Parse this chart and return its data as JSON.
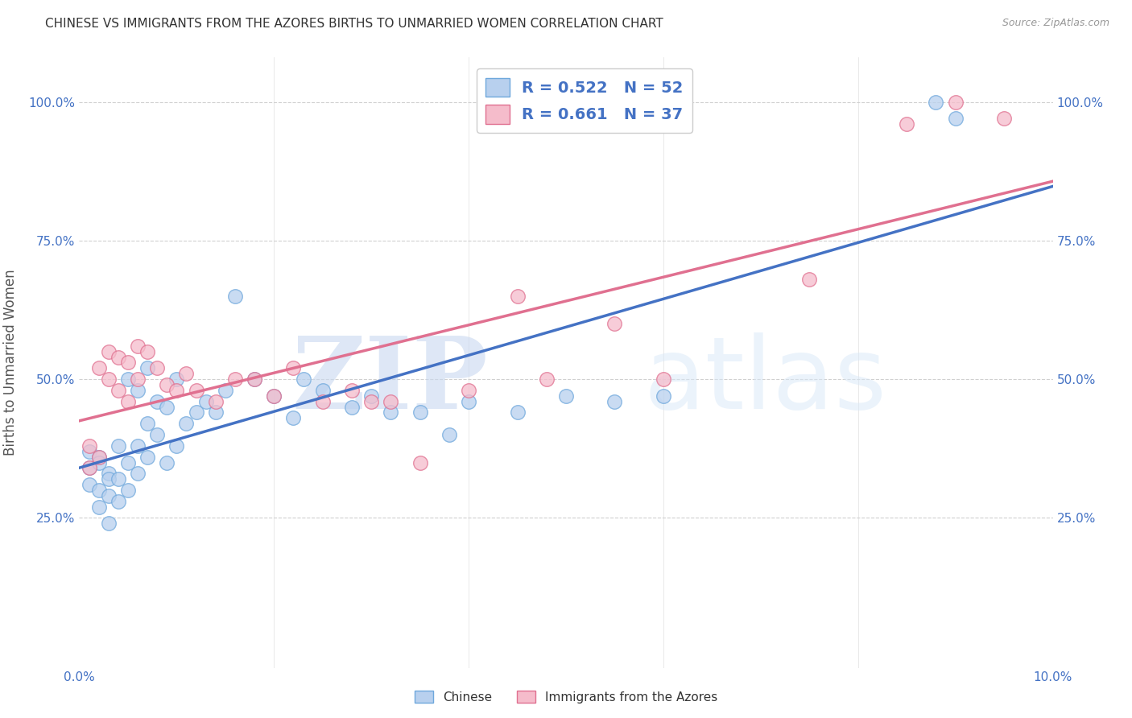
{
  "title": "CHINESE VS IMMIGRANTS FROM THE AZORES BIRTHS TO UNMARRIED WOMEN CORRELATION CHART",
  "source": "Source: ZipAtlas.com",
  "ylabel": "Births to Unmarried Women",
  "xlim": [
    0.0,
    0.1
  ],
  "ylim": [
    -0.02,
    1.08
  ],
  "watermark_zip": "ZIP",
  "watermark_atlas": "atlas",
  "chinese_color": "#b8d0ee",
  "azores_color": "#f5bccb",
  "chinese_edge_color": "#6fa8dc",
  "azores_edge_color": "#e07090",
  "trendline_chinese_color": "#4472c4",
  "trendline_azores_color": "#e07090",
  "legend_label_1": "R = 0.522   N = 52",
  "legend_label_2": "R = 0.661   N = 37",
  "bottom_legend_1": "Chinese",
  "bottom_legend_2": "Immigrants from the Azores",
  "chinese_scatter_x": [
    0.001,
    0.001,
    0.001,
    0.002,
    0.002,
    0.002,
    0.002,
    0.003,
    0.003,
    0.003,
    0.003,
    0.004,
    0.004,
    0.004,
    0.005,
    0.005,
    0.005,
    0.006,
    0.006,
    0.006,
    0.007,
    0.007,
    0.007,
    0.008,
    0.008,
    0.009,
    0.009,
    0.01,
    0.01,
    0.011,
    0.012,
    0.013,
    0.014,
    0.015,
    0.016,
    0.018,
    0.02,
    0.022,
    0.023,
    0.025,
    0.028,
    0.03,
    0.032,
    0.035,
    0.038,
    0.04,
    0.045,
    0.05,
    0.055,
    0.06,
    0.088,
    0.09
  ],
  "chinese_scatter_y": [
    0.37,
    0.34,
    0.31,
    0.36,
    0.35,
    0.3,
    0.27,
    0.33,
    0.32,
    0.29,
    0.24,
    0.38,
    0.32,
    0.28,
    0.5,
    0.35,
    0.3,
    0.48,
    0.38,
    0.33,
    0.52,
    0.42,
    0.36,
    0.46,
    0.4,
    0.45,
    0.35,
    0.5,
    0.38,
    0.42,
    0.44,
    0.46,
    0.44,
    0.48,
    0.65,
    0.5,
    0.47,
    0.43,
    0.5,
    0.48,
    0.45,
    0.47,
    0.44,
    0.44,
    0.4,
    0.46,
    0.44,
    0.47,
    0.46,
    0.47,
    1.0,
    0.97
  ],
  "azores_scatter_x": [
    0.001,
    0.001,
    0.002,
    0.002,
    0.003,
    0.003,
    0.004,
    0.004,
    0.005,
    0.005,
    0.006,
    0.006,
    0.007,
    0.008,
    0.009,
    0.01,
    0.011,
    0.012,
    0.014,
    0.016,
    0.018,
    0.02,
    0.022,
    0.025,
    0.028,
    0.03,
    0.032,
    0.035,
    0.04,
    0.045,
    0.048,
    0.055,
    0.06,
    0.075,
    0.085,
    0.09,
    0.095
  ],
  "azores_scatter_y": [
    0.38,
    0.34,
    0.52,
    0.36,
    0.55,
    0.5,
    0.54,
    0.48,
    0.53,
    0.46,
    0.56,
    0.5,
    0.55,
    0.52,
    0.49,
    0.48,
    0.51,
    0.48,
    0.46,
    0.5,
    0.5,
    0.47,
    0.52,
    0.46,
    0.48,
    0.46,
    0.46,
    0.35,
    0.48,
    0.65,
    0.5,
    0.6,
    0.5,
    0.68,
    0.96,
    1.0,
    0.97
  ]
}
